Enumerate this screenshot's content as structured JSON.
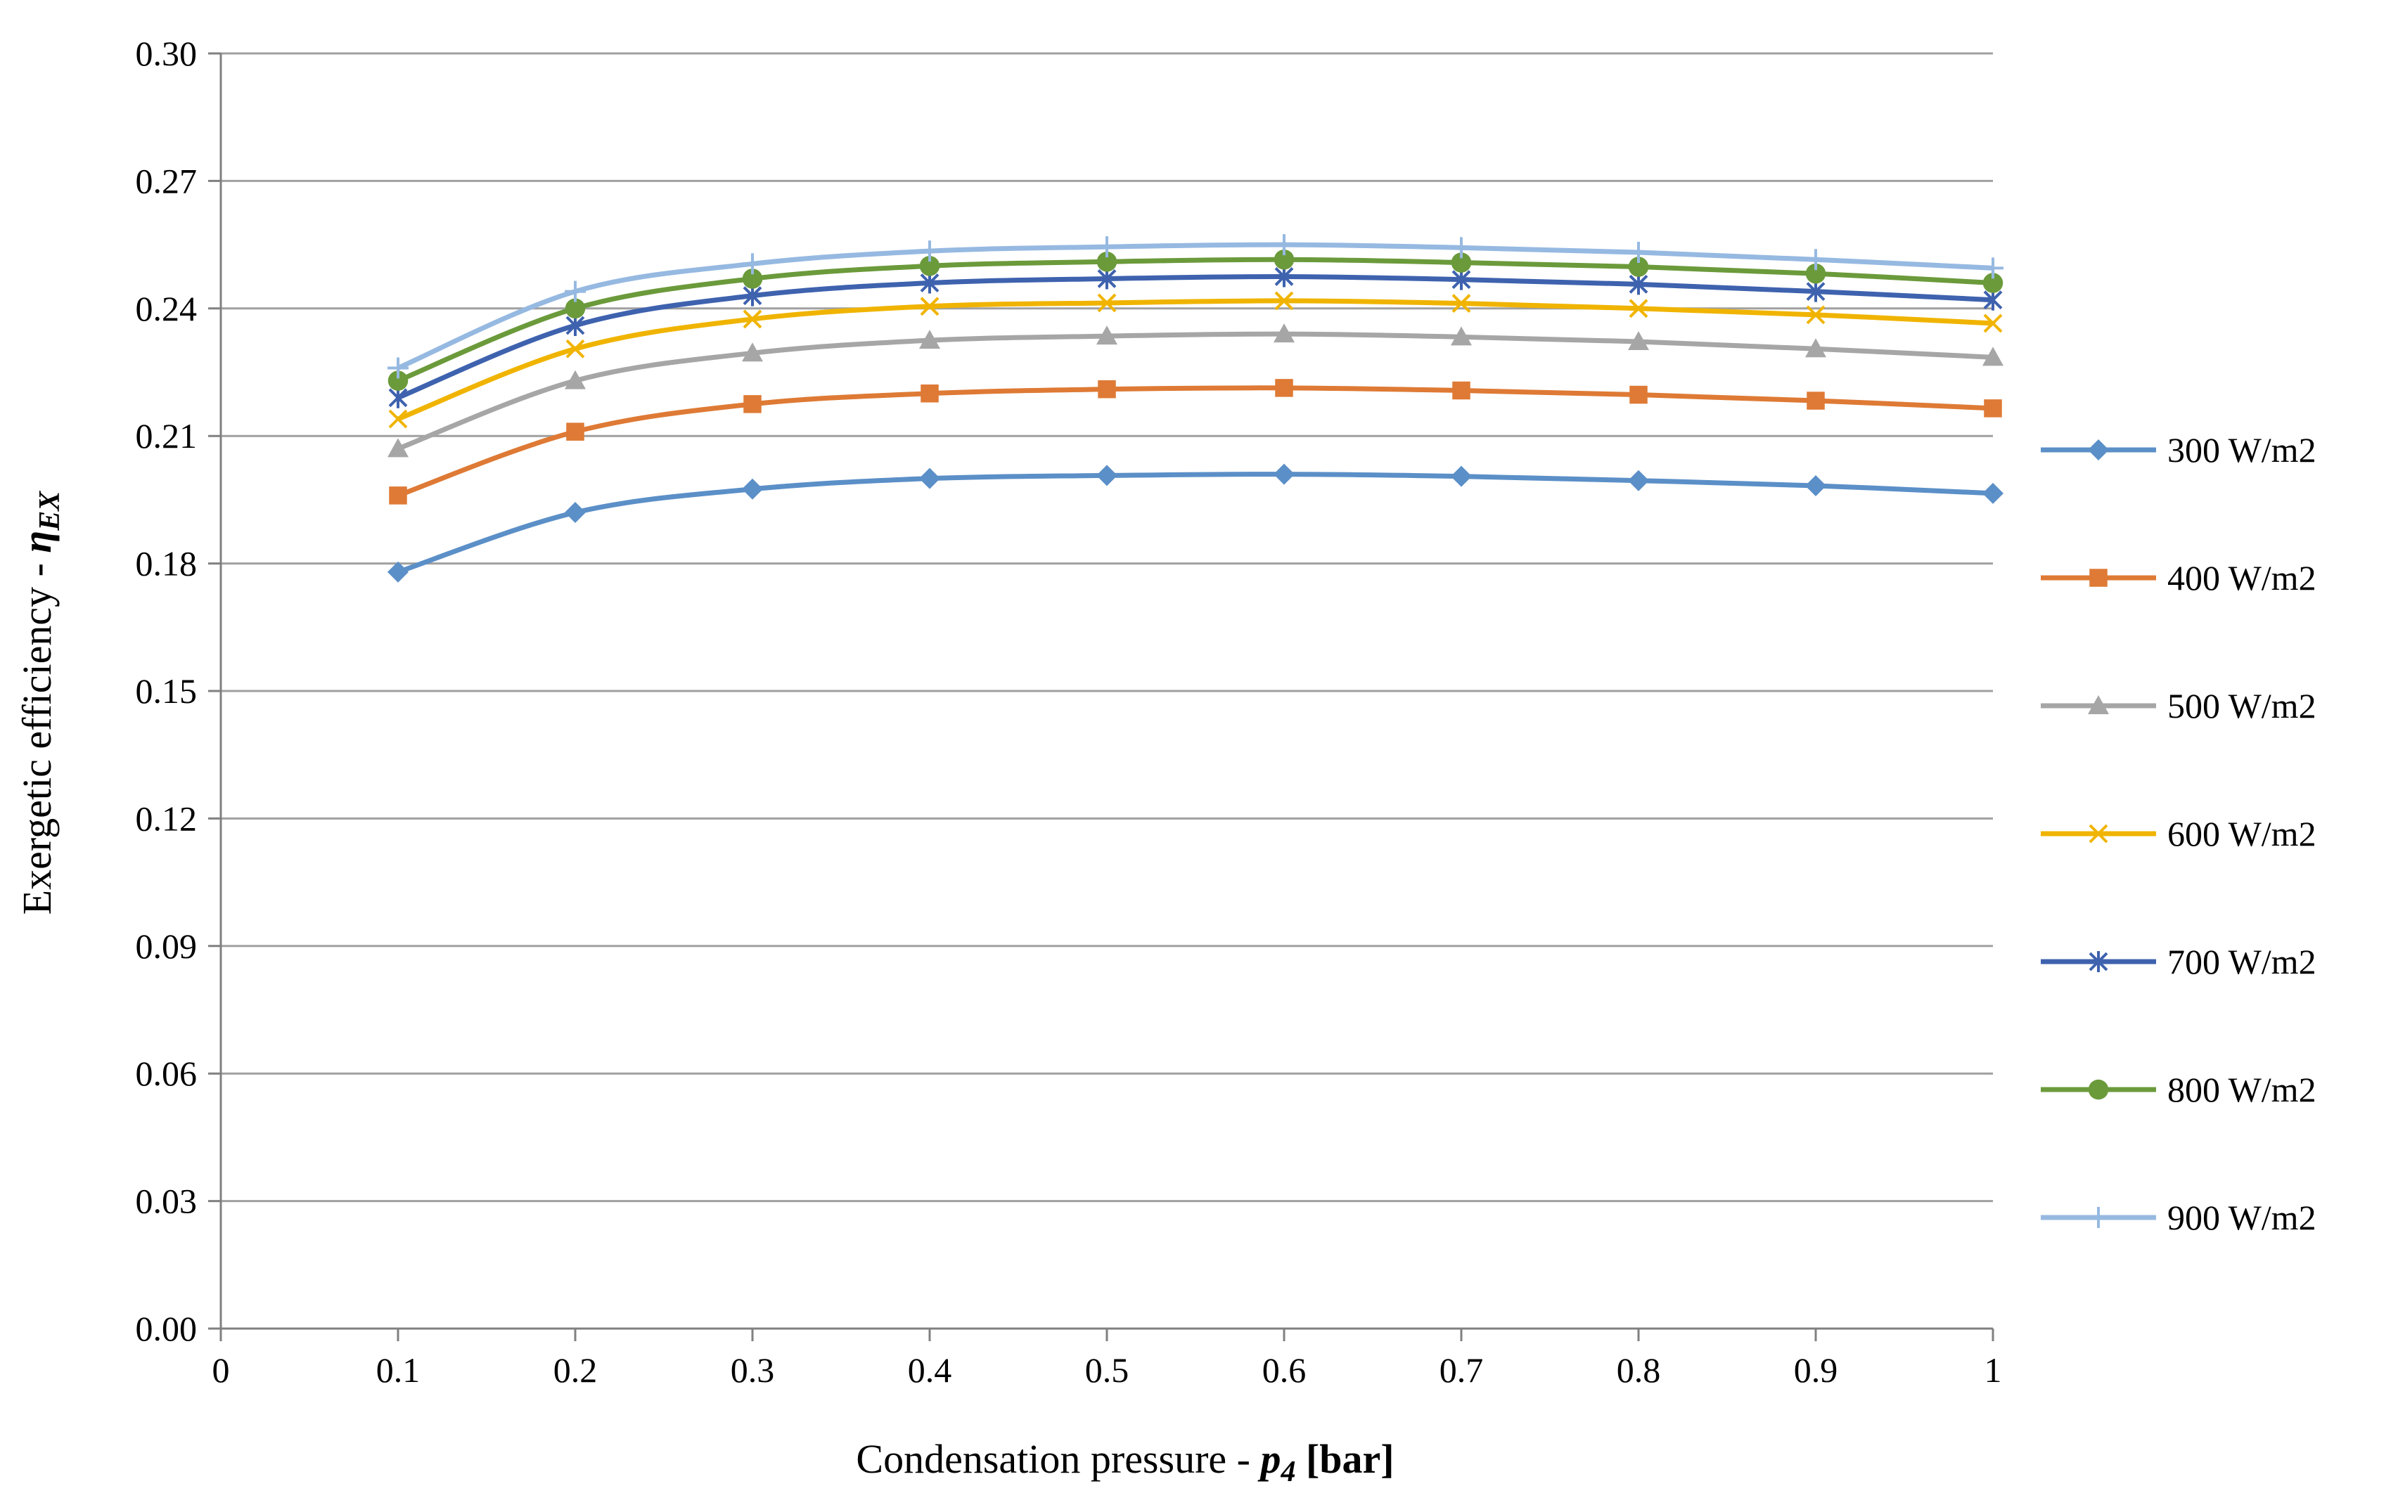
{
  "chart_data": {
    "type": "line",
    "title": "",
    "xlabel_prefix": "Condensation pressure - ",
    "xlabel_var": "p",
    "xlabel_sub": "4",
    "xlabel_unit": " [bar]",
    "ylabel_prefix": "Exergetic efficiency - ",
    "ylabel_var": "η",
    "ylabel_sub": "EX",
    "xlim": [
      0,
      1
    ],
    "ylim": [
      0,
      0.3
    ],
    "xticks": [
      "0",
      "0.1",
      "0.2",
      "0.3",
      "0.4",
      "0.5",
      "0.6",
      "0.7",
      "0.8",
      "0.9",
      "1"
    ],
    "yticks": [
      "0.00",
      "0.03",
      "0.06",
      "0.09",
      "0.12",
      "0.15",
      "0.18",
      "0.21",
      "0.24",
      "0.27",
      "0.30"
    ],
    "grid": "horizontal",
    "legend_position": "right",
    "x": [
      0.1,
      0.2,
      0.3,
      0.4,
      0.5,
      0.6,
      0.7,
      0.8,
      0.9,
      1.0
    ],
    "series": [
      {
        "name": "300 W/m2",
        "color": "#5B8FC7",
        "marker": "diamond",
        "values": [
          0.178,
          0.192,
          0.1975,
          0.2,
          0.2007,
          0.201,
          0.2005,
          0.1995,
          0.1983,
          0.1965
        ]
      },
      {
        "name": "400 W/m2",
        "color": "#DE7A35",
        "marker": "square",
        "values": [
          0.196,
          0.211,
          0.2175,
          0.22,
          0.221,
          0.2213,
          0.2207,
          0.2197,
          0.2183,
          0.2165
        ]
      },
      {
        "name": "500 W/m2",
        "color": "#A6A6A6",
        "marker": "triangle",
        "values": [
          0.207,
          0.223,
          0.2295,
          0.2325,
          0.2335,
          0.234,
          0.2333,
          0.2322,
          0.2305,
          0.2285
        ]
      },
      {
        "name": "600 W/m2",
        "color": "#F0B400",
        "marker": "x",
        "values": [
          0.214,
          0.2305,
          0.2375,
          0.2405,
          0.2413,
          0.2418,
          0.2412,
          0.24,
          0.2385,
          0.2365
        ]
      },
      {
        "name": "700 W/m2",
        "color": "#3E62AE",
        "marker": "star",
        "values": [
          0.219,
          0.236,
          0.243,
          0.246,
          0.247,
          0.2475,
          0.2468,
          0.2457,
          0.244,
          0.242
        ]
      },
      {
        "name": "800 W/m2",
        "color": "#6B9A3B",
        "marker": "circle",
        "values": [
          0.223,
          0.24,
          0.247,
          0.25,
          0.251,
          0.2515,
          0.2508,
          0.2498,
          0.2482,
          0.246
        ]
      },
      {
        "name": "900 W/m2",
        "color": "#96B9E1",
        "marker": "plus",
        "values": [
          0.226,
          0.244,
          0.2505,
          0.2535,
          0.2545,
          0.255,
          0.2543,
          0.2532,
          0.2515,
          0.2495
        ]
      }
    ]
  }
}
